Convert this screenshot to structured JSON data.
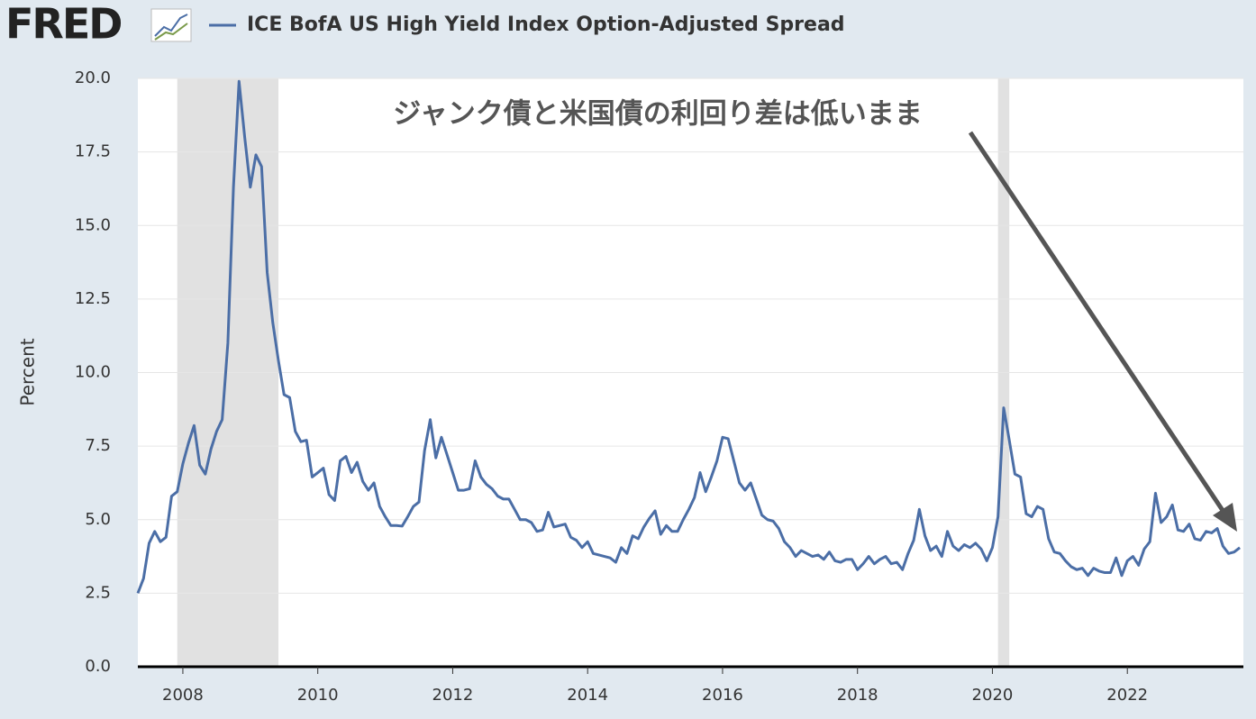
{
  "logo": "FRED",
  "chart_data": {
    "type": "line",
    "y_label": "Percent",
    "annotation": "ジャンク債と米国債の利回り差は低いまま",
    "xlim": [
      2007.333,
      2023.72
    ],
    "xticks": [
      2008,
      2010,
      2012,
      2014,
      2016,
      2018,
      2020,
      2022
    ],
    "ylim": [
      0,
      20
    ],
    "yticks": [
      {
        "value": 0,
        "label": "0.0"
      },
      {
        "value": 2.5,
        "label": "2.5"
      },
      {
        "value": 5,
        "label": "5.0"
      },
      {
        "value": 7.5,
        "label": "7.5"
      },
      {
        "value": 10,
        "label": "10.0"
      },
      {
        "value": 12.5,
        "label": "12.5"
      },
      {
        "value": 15,
        "label": "15.0"
      },
      {
        "value": 17.5,
        "label": "17.5"
      },
      {
        "value": 20,
        "label": "20.0"
      }
    ],
    "recessions": [
      [
        2007.917,
        2009.417
      ],
      [
        2020.083,
        2020.25
      ]
    ],
    "recession_color": "#e1e1e1",
    "x": [
      2007.333,
      2007.417,
      2007.5,
      2007.583,
      2007.667,
      2007.75,
      2007.833,
      2007.917,
      2008,
      2008.083,
      2008.167,
      2008.25,
      2008.333,
      2008.417,
      2008.5,
      2008.583,
      2008.667,
      2008.75,
      2008.833,
      2008.917,
      2009,
      2009.083,
      2009.167,
      2009.25,
      2009.333,
      2009.417,
      2009.5,
      2009.583,
      2009.667,
      2009.75,
      2009.833,
      2009.917,
      2010,
      2010.083,
      2010.167,
      2010.25,
      2010.333,
      2010.417,
      2010.5,
      2010.583,
      2010.667,
      2010.75,
      2010.833,
      2010.917,
      2011,
      2011.083,
      2011.167,
      2011.25,
      2011.333,
      2011.417,
      2011.5,
      2011.583,
      2011.667,
      2011.75,
      2011.833,
      2011.917,
      2012,
      2012.083,
      2012.167,
      2012.25,
      2012.333,
      2012.417,
      2012.5,
      2012.583,
      2012.667,
      2012.75,
      2012.833,
      2012.917,
      2013,
      2013.083,
      2013.167,
      2013.25,
      2013.333,
      2013.417,
      2013.5,
      2013.583,
      2013.667,
      2013.75,
      2013.833,
      2013.917,
      2014,
      2014.083,
      2014.167,
      2014.25,
      2014.333,
      2014.417,
      2014.5,
      2014.583,
      2014.667,
      2014.75,
      2014.833,
      2014.917,
      2015,
      2015.083,
      2015.167,
      2015.25,
      2015.333,
      2015.417,
      2015.5,
      2015.583,
      2015.667,
      2015.75,
      2015.833,
      2015.917,
      2016,
      2016.083,
      2016.167,
      2016.25,
      2016.333,
      2016.417,
      2016.5,
      2016.583,
      2016.667,
      2016.75,
      2016.833,
      2016.917,
      2017,
      2017.083,
      2017.167,
      2017.25,
      2017.333,
      2017.417,
      2017.5,
      2017.583,
      2017.667,
      2017.75,
      2017.833,
      2017.917,
      2018,
      2018.083,
      2018.167,
      2018.25,
      2018.333,
      2018.417,
      2018.5,
      2018.583,
      2018.667,
      2018.75,
      2018.833,
      2018.917,
      2019,
      2019.083,
      2019.167,
      2019.25,
      2019.333,
      2019.417,
      2019.5,
      2019.583,
      2019.667,
      2019.75,
      2019.833,
      2019.917,
      2020,
      2020.083,
      2020.167,
      2020.25,
      2020.333,
      2020.417,
      2020.5,
      2020.583,
      2020.667,
      2020.75,
      2020.833,
      2020.917,
      2021,
      2021.083,
      2021.167,
      2021.25,
      2021.333,
      2021.417,
      2021.5,
      2021.583,
      2021.667,
      2021.75,
      2021.833,
      2021.917,
      2022,
      2022.083,
      2022.167,
      2022.25,
      2022.333,
      2022.417,
      2022.5,
      2022.583,
      2022.667,
      2022.75,
      2022.833,
      2022.917,
      2023,
      2023.083,
      2023.167,
      2023.25,
      2023.333,
      2023.417,
      2023.5,
      2023.583,
      2023.667
    ],
    "series": [
      {
        "name": "ICE BofA US High Yield Index Option-Adjusted Spread",
        "color": "#4b6ea6",
        "values": [
          2.5,
          3.0,
          4.2,
          4.6,
          4.25,
          4.4,
          5.8,
          5.95,
          6.9,
          7.6,
          8.2,
          6.85,
          6.55,
          7.4,
          8.0,
          8.4,
          11.0,
          16.3,
          19.9,
          18.0,
          16.3,
          17.4,
          17.0,
          13.4,
          11.7,
          10.4,
          9.25,
          9.15,
          8.0,
          7.65,
          7.7,
          6.45,
          6.6,
          6.75,
          5.85,
          5.65,
          7.0,
          7.15,
          6.6,
          6.95,
          6.3,
          6.0,
          6.25,
          5.45,
          5.1,
          4.8,
          4.8,
          4.78,
          5.1,
          5.45,
          5.6,
          7.35,
          8.4,
          7.1,
          7.8,
          7.2,
          6.6,
          6.0,
          6.0,
          6.05,
          7.0,
          6.45,
          6.2,
          6.05,
          5.8,
          5.7,
          5.7,
          5.35,
          5.0,
          5.0,
          4.9,
          4.6,
          4.65,
          5.25,
          4.75,
          4.8,
          4.85,
          4.4,
          4.3,
          4.05,
          4.25,
          3.85,
          3.8,
          3.75,
          3.7,
          3.55,
          4.05,
          3.85,
          4.45,
          4.35,
          4.75,
          5.05,
          5.3,
          4.5,
          4.8,
          4.6,
          4.6,
          5.0,
          5.35,
          5.75,
          6.6,
          5.95,
          6.45,
          7.0,
          7.8,
          7.75,
          7.0,
          6.25,
          6.0,
          6.25,
          5.7,
          5.15,
          5.0,
          4.95,
          4.7,
          4.25,
          4.05,
          3.75,
          3.95,
          3.85,
          3.75,
          3.8,
          3.65,
          3.9,
          3.6,
          3.55,
          3.65,
          3.65,
          3.3,
          3.5,
          3.75,
          3.5,
          3.65,
          3.75,
          3.5,
          3.55,
          3.3,
          3.85,
          4.3,
          5.35,
          4.45,
          3.95,
          4.1,
          3.75,
          4.6,
          4.1,
          3.95,
          4.15,
          4.05,
          4.2,
          4.0,
          3.6,
          4.05,
          5.1,
          8.8,
          7.7,
          6.55,
          6.45,
          5.2,
          5.1,
          5.45,
          5.35,
          4.35,
          3.9,
          3.85,
          3.6,
          3.4,
          3.3,
          3.35,
          3.1,
          3.35,
          3.25,
          3.2,
          3.2,
          3.7,
          3.1,
          3.6,
          3.75,
          3.45,
          4.0,
          4.25,
          5.9,
          4.9,
          5.1,
          5.5,
          4.65,
          4.6,
          4.85,
          4.35,
          4.3,
          4.6,
          4.55,
          4.7,
          4.1,
          3.85,
          3.9,
          4.05
        ]
      }
    ]
  }
}
